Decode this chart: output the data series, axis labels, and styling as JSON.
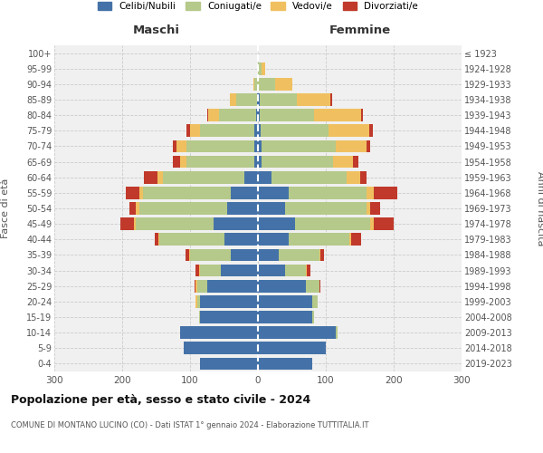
{
  "age_groups": [
    "0-4",
    "5-9",
    "10-14",
    "15-19",
    "20-24",
    "25-29",
    "30-34",
    "35-39",
    "40-44",
    "45-49",
    "50-54",
    "55-59",
    "60-64",
    "65-69",
    "70-74",
    "75-79",
    "80-84",
    "85-89",
    "90-94",
    "95-99",
    "100+"
  ],
  "birth_years": [
    "2019-2023",
    "2014-2018",
    "2009-2013",
    "2004-2008",
    "1999-2003",
    "1994-1998",
    "1989-1993",
    "1984-1988",
    "1979-1983",
    "1974-1978",
    "1969-1973",
    "1964-1968",
    "1959-1963",
    "1954-1958",
    "1949-1953",
    "1944-1948",
    "1939-1943",
    "1934-1938",
    "1929-1933",
    "1924-1928",
    "≤ 1923"
  ],
  "maschi": {
    "celibi": [
      85,
      110,
      115,
      85,
      85,
      75,
      55,
      40,
      50,
      65,
      45,
      40,
      20,
      5,
      5,
      5,
      3,
      2,
      0,
      0,
      0
    ],
    "coniugati": [
      0,
      0,
      0,
      2,
      5,
      15,
      30,
      60,
      95,
      115,
      130,
      130,
      120,
      100,
      100,
      80,
      55,
      30,
      5,
      0,
      0
    ],
    "vedovi": [
      0,
      0,
      0,
      0,
      2,
      2,
      2,
      2,
      2,
      3,
      5,
      5,
      8,
      10,
      15,
      15,
      15,
      10,
      2,
      0,
      0
    ],
    "divorziati": [
      0,
      0,
      0,
      0,
      0,
      2,
      5,
      5,
      5,
      20,
      10,
      20,
      20,
      10,
      5,
      5,
      2,
      0,
      0,
      0,
      0
    ]
  },
  "femmine": {
    "nubili": [
      80,
      100,
      115,
      80,
      80,
      70,
      40,
      30,
      45,
      55,
      40,
      45,
      20,
      5,
      5,
      4,
      2,
      2,
      0,
      0,
      0
    ],
    "coniugate": [
      0,
      0,
      2,
      2,
      8,
      20,
      30,
      60,
      90,
      110,
      120,
      115,
      110,
      105,
      110,
      100,
      80,
      55,
      25,
      5,
      0
    ],
    "vedove": [
      0,
      0,
      0,
      0,
      0,
      0,
      2,
      2,
      2,
      5,
      5,
      10,
      20,
      30,
      45,
      60,
      70,
      50,
      25,
      5,
      0
    ],
    "divorziate": [
      0,
      0,
      0,
      0,
      0,
      2,
      5,
      5,
      15,
      30,
      15,
      35,
      10,
      8,
      5,
      5,
      2,
      2,
      0,
      0,
      0
    ]
  },
  "colors": {
    "celibi": "#4472a8",
    "coniugati": "#b5c98a",
    "vedovi": "#f0c060",
    "divorziati": "#c0392b"
  },
  "legend_labels": [
    "Celibi/Nubili",
    "Coniugati/e",
    "Vedovi/e",
    "Divorziati/e"
  ],
  "title": "Popolazione per età, sesso e stato civile - 2024",
  "subtitle": "COMUNE DI MONTANO LUCINO (CO) - Dati ISTAT 1° gennaio 2024 - Elaborazione TUTTITALIA.IT",
  "xlabel_left": "Maschi",
  "xlabel_right": "Femmine",
  "ylabel_left": "Fasce di età",
  "ylabel_right": "Anni di nascita",
  "xlim": 300,
  "background_color": "#ffffff",
  "plot_bg_color": "#f0f0f0",
  "grid_color": "#cccccc"
}
